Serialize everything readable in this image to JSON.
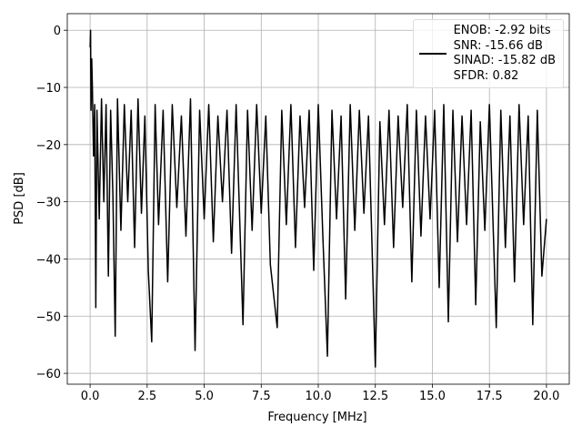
{
  "chart_data": {
    "type": "line",
    "xlabel": "Frequency [MHz]",
    "ylabel": "PSD [dB]",
    "x": [
      0,
      0.02,
      0.04,
      0.07,
      0.1,
      0.15,
      0.2,
      0.25,
      0.3,
      0.4,
      0.5,
      0.6,
      0.7,
      0.8,
      0.9,
      1.0,
      1.1,
      1.2,
      1.35,
      1.5,
      1.65,
      1.8,
      1.95,
      2.1,
      2.25,
      2.4,
      2.55,
      2.7,
      2.85,
      3.0,
      3.2,
      3.4,
      3.6,
      3.8,
      4.0,
      4.2,
      4.4,
      4.6,
      4.8,
      5.0,
      5.2,
      5.4,
      5.6,
      5.8,
      6.0,
      6.2,
      6.4,
      6.7,
      6.9,
      7.1,
      7.3,
      7.5,
      7.7,
      7.9,
      8.2,
      8.4,
      8.6,
      8.8,
      9.0,
      9.2,
      9.4,
      9.6,
      9.8,
      10.0,
      10.2,
      10.4,
      10.6,
      10.8,
      11.0,
      11.2,
      11.4,
      11.6,
      11.8,
      12.0,
      12.2,
      12.5,
      12.7,
      12.9,
      13.1,
      13.3,
      13.5,
      13.7,
      13.9,
      14.1,
      14.3,
      14.5,
      14.7,
      14.9,
      15.1,
      15.3,
      15.5,
      15.7,
      15.9,
      16.1,
      16.3,
      16.5,
      16.7,
      16.9,
      17.1,
      17.3,
      17.5,
      17.8,
      18.0,
      18.2,
      18.4,
      18.6,
      18.8,
      19.0,
      19.2,
      19.4,
      19.6,
      19.8,
      20.0
    ],
    "series": [
      {
        "name": "ENOB: -2.92 bits\nSNR: -15.66 dB\nSINAD: -15.82 dB\nSFDR: 0.82",
        "color": "#000000",
        "values": [
          -3,
          0,
          -14,
          -5,
          -10,
          -22,
          -13,
          -48.5,
          -14,
          -33,
          -12,
          -30,
          -13,
          -43,
          -14,
          -29,
          -53.5,
          -12,
          -35,
          -13,
          -30,
          -14,
          -38,
          -12,
          -32,
          -15,
          -42,
          -54.5,
          -13,
          -34,
          -14,
          -44,
          -13,
          -31,
          -15,
          -36,
          -12,
          -56,
          -14,
          -33,
          -13,
          -37,
          -15,
          -30,
          -14,
          -39,
          -13,
          -51.5,
          -14,
          -35,
          -13,
          -32,
          -15,
          -41,
          -52,
          -14,
          -34,
          -13,
          -38,
          -15,
          -31,
          -14,
          -42,
          -13,
          -36,
          -57,
          -14,
          -33,
          -15,
          -47,
          -13,
          -35,
          -14,
          -32,
          -15,
          -58.9,
          -16,
          -34,
          -14,
          -38,
          -15,
          -31,
          -13,
          -44,
          -14,
          -36,
          -15,
          -33,
          -14,
          -45,
          -13,
          -51,
          -14,
          -37,
          -15,
          -34,
          -14,
          -48,
          -16,
          -35,
          -13,
          -52,
          -14,
          -38,
          -15,
          -44,
          -13,
          -34,
          -15,
          -51.5,
          -14,
          -43,
          -33
        ]
      }
    ],
    "xlim": [
      -1,
      21
    ],
    "ylim": [
      -61.9,
      2.9
    ],
    "xticks": [
      {
        "value": 0,
        "label": "0.0"
      },
      2.5,
      {
        "value": 5,
        "label": "5.0"
      },
      7.5,
      {
        "value": 10,
        "label": "10.0"
      },
      12.5,
      {
        "value": 15,
        "label": "15.0"
      },
      17.5,
      {
        "value": 20,
        "label": "20.0"
      }
    ],
    "yticks": [
      {
        "value": -60,
        "label": "−60"
      },
      {
        "value": -50,
        "label": "−50"
      },
      {
        "value": -40,
        "label": "−40"
      },
      {
        "value": -30,
        "label": "−30"
      },
      {
        "value": -20,
        "label": "−20"
      },
      {
        "value": -10,
        "label": "−10"
      },
      0
    ],
    "grid": true,
    "legend": "upper right"
  }
}
